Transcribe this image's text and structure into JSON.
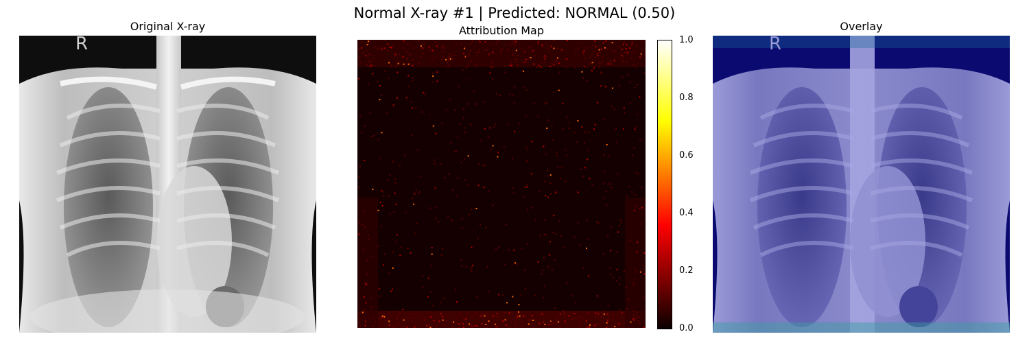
{
  "figure": {
    "suptitle": "Normal X-ray #1 | Predicted: NORMAL (0.50)"
  },
  "panels": [
    {
      "title": "Original X-ray",
      "marker": "R"
    },
    {
      "title": "Attribution Map"
    },
    {
      "title": "Overlay",
      "marker": "R"
    }
  ],
  "colorbar": {
    "ticks": [
      "1.0",
      "0.8",
      "0.6",
      "0.4",
      "0.2",
      "0.0"
    ],
    "colormap": "hot",
    "range": [
      0.0,
      1.0
    ]
  },
  "colors": {
    "xray_bg": "#101010",
    "attribution_bg": "#140000",
    "overlay_tint": "#2a2aa8"
  }
}
